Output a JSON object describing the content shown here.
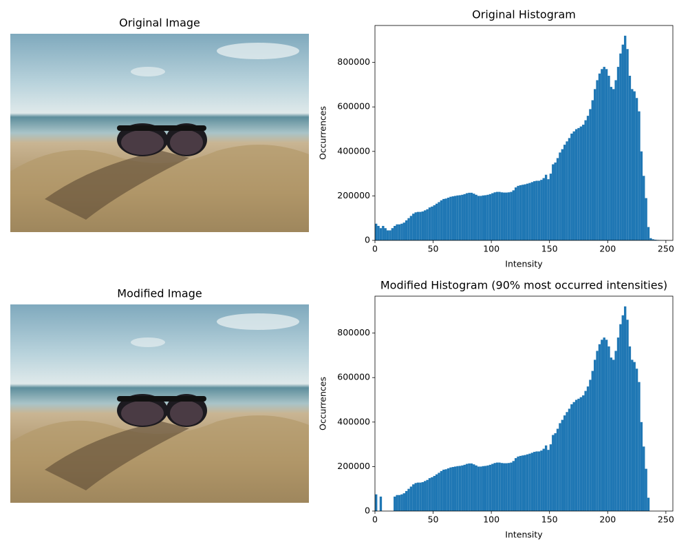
{
  "images": [
    {
      "title": "Original Image"
    },
    {
      "title": "Modified Image"
    }
  ],
  "chart_data": [
    {
      "type": "histogram",
      "title": "Original Histogram",
      "xlabel": "Intensity",
      "ylabel": "Occurrences",
      "color": "#1f77b4",
      "xlim": [
        0,
        256
      ],
      "ylim": [
        0,
        966000
      ],
      "xticks": [
        0,
        50,
        100,
        150,
        200,
        250
      ],
      "yticks": [
        0,
        200000,
        400000,
        600000,
        800000
      ],
      "bins": [
        0,
        2,
        4,
        6,
        8,
        10,
        12,
        14,
        16,
        18,
        20,
        22,
        24,
        26,
        28,
        30,
        32,
        34,
        36,
        38,
        40,
        42,
        44,
        46,
        48,
        50,
        52,
        54,
        56,
        58,
        60,
        62,
        64,
        66,
        68,
        70,
        72,
        74,
        76,
        78,
        80,
        82,
        84,
        86,
        88,
        90,
        92,
        94,
        96,
        98,
        100,
        102,
        104,
        106,
        108,
        110,
        112,
        114,
        116,
        118,
        120,
        122,
        124,
        126,
        128,
        130,
        132,
        134,
        136,
        138,
        140,
        142,
        144,
        146,
        148,
        150,
        152,
        154,
        156,
        158,
        160,
        162,
        164,
        166,
        168,
        170,
        172,
        174,
        176,
        178,
        180,
        182,
        184,
        186,
        188,
        190,
        192,
        194,
        196,
        198,
        200,
        202,
        204,
        206,
        208,
        210,
        212,
        214,
        216,
        218,
        220,
        222,
        224,
        226,
        228,
        230,
        232,
        234,
        236,
        238,
        240,
        242,
        244,
        246,
        248,
        250,
        252,
        254,
        256
      ],
      "values": [
        75000,
        65000,
        55000,
        65000,
        55000,
        45000,
        45000,
        55000,
        65000,
        72000,
        72000,
        75000,
        80000,
        90000,
        100000,
        110000,
        120000,
        126000,
        128000,
        128000,
        130000,
        135000,
        140000,
        148000,
        152000,
        158000,
        165000,
        172000,
        180000,
        186000,
        188000,
        192000,
        196000,
        198000,
        200000,
        202000,
        203000,
        205000,
        208000,
        212000,
        214000,
        214000,
        210000,
        205000,
        200000,
        200000,
        202000,
        203000,
        205000,
        208000,
        212000,
        216000,
        218000,
        218000,
        216000,
        215000,
        215000,
        216000,
        218000,
        225000,
        238000,
        245000,
        248000,
        250000,
        252000,
        255000,
        258000,
        262000,
        266000,
        268000,
        268000,
        272000,
        280000,
        295000,
        275000,
        300000,
        342000,
        350000,
        370000,
        395000,
        410000,
        430000,
        445000,
        460000,
        480000,
        490000,
        500000,
        505000,
        512000,
        520000,
        540000,
        560000,
        590000,
        630000,
        680000,
        720000,
        750000,
        770000,
        780000,
        770000,
        740000,
        690000,
        680000,
        720000,
        780000,
        840000,
        880000,
        920000,
        860000,
        740000,
        680000,
        670000,
        640000,
        580000,
        400000,
        290000,
        190000,
        60000,
        10000,
        5000,
        3000,
        2000,
        1500,
        1000,
        1000,
        500,
        0,
        0
      ]
    },
    {
      "type": "histogram",
      "title": "Modified Histogram (90% most occurred intensities)",
      "xlabel": "Intensity",
      "ylabel": "Occurrences",
      "color": "#1f77b4",
      "xlim": [
        0,
        256
      ],
      "ylim": [
        0,
        966000
      ],
      "xticks": [
        0,
        50,
        100,
        150,
        200,
        250
      ],
      "yticks": [
        0,
        200000,
        400000,
        600000,
        800000
      ],
      "bins": [
        0,
        2,
        4,
        6,
        8,
        10,
        12,
        14,
        16,
        18,
        20,
        22,
        24,
        26,
        28,
        30,
        32,
        34,
        36,
        38,
        40,
        42,
        44,
        46,
        48,
        50,
        52,
        54,
        56,
        58,
        60,
        62,
        64,
        66,
        68,
        70,
        72,
        74,
        76,
        78,
        80,
        82,
        84,
        86,
        88,
        90,
        92,
        94,
        96,
        98,
        100,
        102,
        104,
        106,
        108,
        110,
        112,
        114,
        116,
        118,
        120,
        122,
        124,
        126,
        128,
        130,
        132,
        134,
        136,
        138,
        140,
        142,
        144,
        146,
        148,
        150,
        152,
        154,
        156,
        158,
        160,
        162,
        164,
        166,
        168,
        170,
        172,
        174,
        176,
        178,
        180,
        182,
        184,
        186,
        188,
        190,
        192,
        194,
        196,
        198,
        200,
        202,
        204,
        206,
        208,
        210,
        212,
        214,
        216,
        218,
        220,
        222,
        224,
        226,
        228,
        230,
        232,
        234,
        236,
        238,
        240,
        242,
        244,
        246,
        248,
        250,
        252,
        254,
        256
      ],
      "values": [
        75000,
        0,
        65000,
        0,
        0,
        0,
        0,
        0,
        65000,
        72000,
        72000,
        75000,
        80000,
        90000,
        100000,
        110000,
        120000,
        126000,
        128000,
        128000,
        130000,
        135000,
        140000,
        148000,
        152000,
        158000,
        165000,
        172000,
        180000,
        186000,
        188000,
        192000,
        196000,
        198000,
        200000,
        202000,
        203000,
        205000,
        208000,
        212000,
        214000,
        214000,
        210000,
        205000,
        200000,
        200000,
        202000,
        203000,
        205000,
        208000,
        212000,
        216000,
        218000,
        218000,
        216000,
        215000,
        215000,
        216000,
        218000,
        225000,
        238000,
        245000,
        248000,
        250000,
        252000,
        255000,
        258000,
        262000,
        266000,
        268000,
        268000,
        272000,
        280000,
        295000,
        275000,
        300000,
        342000,
        350000,
        370000,
        395000,
        410000,
        430000,
        445000,
        460000,
        480000,
        490000,
        500000,
        505000,
        512000,
        520000,
        540000,
        560000,
        590000,
        630000,
        680000,
        720000,
        750000,
        770000,
        780000,
        770000,
        740000,
        690000,
        680000,
        720000,
        780000,
        840000,
        880000,
        920000,
        860000,
        740000,
        680000,
        670000,
        640000,
        580000,
        400000,
        290000,
        190000,
        60000,
        0,
        0,
        0,
        0,
        0,
        0,
        0,
        0,
        0,
        0
      ]
    }
  ]
}
